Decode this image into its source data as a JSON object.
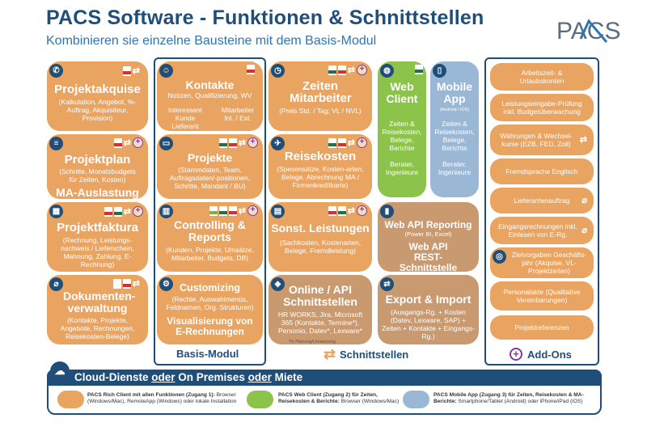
{
  "header": {
    "title": "PACS Software - Funktionen & Schnittstellen",
    "subtitle": "Kombinieren sie einzelne Bausteine mit dem Basis-Modul",
    "logo_text": "PACS"
  },
  "colors": {
    "orange": "#e9a462",
    "green": "#8cc34a",
    "blue": "#9ab8d6",
    "brown": "#c99a70",
    "navy": "#1f4e79",
    "purple": "#7b3f98"
  },
  "left": {
    "projektakquise": {
      "title": "Projektakquise",
      "desc": "(Kalkulation, Angebot, %-Auftrag, Akquisiteur, Provision)",
      "icon": "phone-icon"
    },
    "projektplan": {
      "title": "Projektplan",
      "desc": "(Schritte, Monatsbudgets für Zeiten, Kosten)",
      "title2": "MA-Auslastung",
      "icon": "list-icon"
    },
    "projektfaktura": {
      "title": "Projektfaktura",
      "desc": "(Rechnung, Leistungs-nachweis / Lieferschein, Mahnung, Zahlung, E-Rechnung)",
      "icon": "calculator-icon"
    },
    "dokumente": {
      "title": "Dokumenten-verwaltung",
      "desc": "(Kontakte, Projekte, Angebote, Rechnungen, Reisekosten-Belege)",
      "icon": "paperclip-icon"
    }
  },
  "basis": {
    "label": "Basis-Modul",
    "kontakte": {
      "title": "Kontakte",
      "desc": "Notizen, Qualifizierung, WV",
      "left": "Interessent Kunde Lieferant",
      "right": "Mitarbeiter Int. / Ext."
    },
    "projekte": {
      "title": "Projekte",
      "desc": "(Stammdaten, Team, Auftragsdaten/-positionen, Schritte, Mandant / BU)"
    },
    "controlling": {
      "title": "Controlling & Reports",
      "desc": "(Kunden, Projekte, Umsätze, Mitarbeiter, Budgets, DB)"
    },
    "customizing": {
      "title": "Customizing",
      "desc": "(Rechte, Auswahlmenüs, Feldnamen, Org. Strukturen)",
      "title2": "Visualisierung von E-Rechnungen"
    }
  },
  "middle": {
    "zeiten": {
      "title": "Zeiten Mitarbeiter",
      "desc": "(Preis Std. / Tag; VL / NVL)"
    },
    "reisekosten": {
      "title": "Reisekosten",
      "desc": "(Spesensätze, Kosten-arten, Belege, Abrechnung MA / Firmenkreditkarte)"
    },
    "sonst": {
      "title": "Sonst. Leistungen",
      "desc": "(Sachkosten, Kostenarten, Belege, Fremdleistung)"
    },
    "online_api": {
      "title": "Online / API Schnittstellen",
      "desc": "HR WORKS, Jira, Microsoft 365 (Kontakte, Termine*), Personio, Datev*, Lexware*",
      "note": "*In Planung/Umsetzung"
    }
  },
  "clients": {
    "web": {
      "title": "Web Client",
      "desc": "Zeiten & Reisekosten, Belege, Berichte",
      "desc2": "Berater, Ingenieure"
    },
    "mobile": {
      "title": "Mobile App",
      "os": "(Android / iOS)",
      "desc": "Zeiten & Reisekosten, Belege, Berichte",
      "desc2": "Berater, Ingenieure"
    }
  },
  "schnittstellen": {
    "label": "Schnittstellen",
    "webapi": {
      "title1": "Web API Reporting",
      "sub1": "(Power BI, Excel)",
      "title2": "Web API REST-Schnittstelle"
    },
    "export": {
      "title": "Export & Import",
      "desc": "(Ausgangs-Rg. + Kosten (Datev, Lexware, SAP) + Zeiten + Kontakte + Eingangs-Rg.)"
    }
  },
  "addons": {
    "label": "Add-Ons",
    "items": [
      "Arbeitszeit- & Urlaubskonten",
      "Leistungseingabe-Prüfung inkl. Budgetüberwachung",
      "Währungen & Wechsel-kurse (EZB, FED, Zoll)",
      "Fremdsprache Englisch",
      "Lieferantenauftrag",
      "Eingangsrechnungen inkl. Einlesen von E-Rg.",
      "Zielvorgaben Geschäfts-jahr (Akquise, VL-Projektzeiten)",
      "Personalakte (Qualitative Vereinbarungen)",
      "Projektreferenzen"
    ]
  },
  "bottom": {
    "cloud_a": "Cloud-Dienste ",
    "oder1": "oder",
    "mid": " On Premises ",
    "oder2": "oder",
    "end": " Miete",
    "legend": [
      {
        "bold": "PACS Rich Client mit allen Funktionen (Zugang 1):",
        "rest": " Browser (Windows/Mac), RemoteApp (Windows) oder lokale Installation"
      },
      {
        "bold": "PACS Web Client (Zugang 2) für Zeiten, Reisekosten & Berichte:",
        "rest": " Browser (Windows/Mac)"
      },
      {
        "bold": "PACS Mobile App (Zugang 3) für Zeiten, Reisekosten & MA-Berichte:",
        "rest": " Smartphone/Tablet (Android) oder iPhone/iPad (iOS)"
      }
    ]
  }
}
